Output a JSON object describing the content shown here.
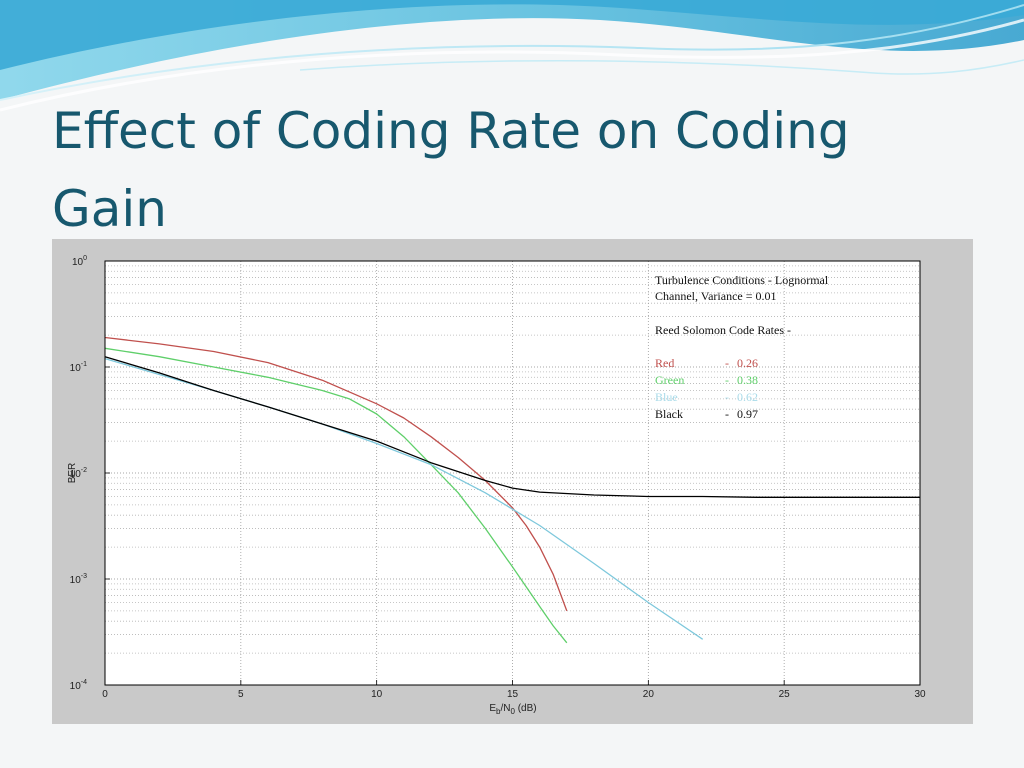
{
  "slide": {
    "title": "Effect of Coding Rate on Coding Gain"
  },
  "colors": {
    "title": "#17586e",
    "red": "#c0504d",
    "green": "#5fcf6a",
    "blue": "#7ec8dc",
    "black": "#000000"
  },
  "chart_data": {
    "type": "line",
    "yscale": "log",
    "xlabel_main": "E",
    "xlabel_sub1": "b",
    "xlabel_mid": "/N",
    "xlabel_sub2": "0",
    "xlabel_unit": " (dB)",
    "ylabel": "BER",
    "xlim": [
      0,
      30
    ],
    "ylim": [
      0.0001,
      1
    ],
    "x_ticks": [
      0,
      5,
      10,
      15,
      20,
      25,
      30
    ],
    "x_tick_labels": [
      "0",
      "5",
      "10",
      "15",
      "20",
      "25",
      "30"
    ],
    "y_ticks": [
      {
        "value": 1,
        "base": "10",
        "exp": "0"
      },
      {
        "value": 0.1,
        "base": "10",
        "exp": "-1"
      },
      {
        "value": 0.01,
        "base": "10",
        "exp": "-2"
      },
      {
        "value": 0.001,
        "base": "10",
        "exp": "-3"
      },
      {
        "value": 0.0001,
        "base": "10",
        "exp": "-4"
      }
    ],
    "grid": true,
    "annotation": {
      "line1": "Turbulence Conditions - Lognormal",
      "line2": "Channel, Variance = 0.01",
      "line3": "Reed Solomon Code Rates -",
      "entries": [
        {
          "name": "Red",
          "dash": "-",
          "rate": "0.26"
        },
        {
          "name": "Green",
          "dash": "-",
          "rate": "0.38"
        },
        {
          "name": "Blue",
          "dash": "-",
          "rate": "0.62"
        },
        {
          "name": "Black",
          "dash": "-",
          "rate": "0.97"
        }
      ]
    },
    "series": [
      {
        "name": "Red",
        "color": "#c0504d",
        "x": [
          0,
          2,
          4,
          6,
          8,
          10,
          11,
          12,
          13,
          14,
          15,
          15.5,
          16,
          16.5,
          17
        ],
        "y": [
          0.19,
          0.165,
          0.14,
          0.11,
          0.075,
          0.045,
          0.033,
          0.022,
          0.014,
          0.0085,
          0.0047,
          0.0032,
          0.002,
          0.0011,
          0.0005
        ]
      },
      {
        "name": "Green",
        "color": "#5fcf6a",
        "x": [
          0,
          2,
          4,
          6,
          8,
          9,
          10,
          11,
          12,
          13,
          14,
          15,
          16,
          16.5,
          17
        ],
        "y": [
          0.15,
          0.125,
          0.1,
          0.08,
          0.06,
          0.05,
          0.036,
          0.022,
          0.012,
          0.0065,
          0.003,
          0.0013,
          0.00055,
          0.00036,
          0.00025
        ]
      },
      {
        "name": "Blue",
        "color": "#7ec8dc",
        "x": [
          0,
          2,
          4,
          6,
          8,
          10,
          12,
          14,
          16,
          18,
          20,
          22
        ],
        "y": [
          0.12,
          0.085,
          0.06,
          0.042,
          0.029,
          0.019,
          0.012,
          0.0065,
          0.0032,
          0.0014,
          0.0006,
          0.00027
        ]
      },
      {
        "name": "Black",
        "color": "#000000",
        "x": [
          0,
          2,
          4,
          6,
          8,
          10,
          12,
          14,
          15,
          16,
          18,
          20,
          22,
          24,
          26,
          28,
          30
        ],
        "y": [
          0.125,
          0.088,
          0.06,
          0.042,
          0.029,
          0.02,
          0.0125,
          0.0085,
          0.0072,
          0.0066,
          0.0062,
          0.006,
          0.006,
          0.0059,
          0.0059,
          0.0059,
          0.0059
        ]
      }
    ]
  }
}
